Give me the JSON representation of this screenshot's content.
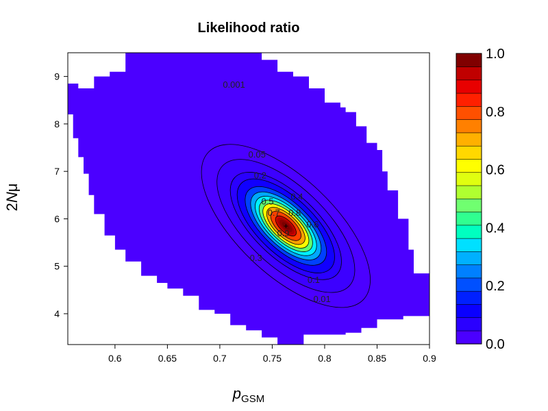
{
  "chart_data": {
    "type": "contour",
    "title": "Likelihood ratio",
    "xlabel": {
      "main": "p",
      "subscript": "GSM"
    },
    "ylabel": {
      "prefix": "2",
      "italic": "N",
      "suffix": "μ"
    },
    "xlim": [
      0.555,
      0.9
    ],
    "ylim": [
      3.35,
      9.5
    ],
    "xticks": [
      0.6,
      0.65,
      0.7,
      0.75,
      0.8,
      0.85,
      0.9
    ],
    "xtick_labels": [
      "0.6",
      "0.65",
      "0.7",
      "0.75",
      "0.8",
      "0.85",
      "0.9"
    ],
    "yticks": [
      4,
      5,
      6,
      7,
      8,
      9
    ],
    "ytick_labels": [
      "4",
      "5",
      "6",
      "7",
      "8",
      "9"
    ],
    "peak": {
      "x": 0.763,
      "y": 5.85,
      "value": 1.0
    },
    "contour_levels": [
      0.001,
      0.01,
      0.05,
      0.1,
      0.2,
      0.3,
      0.4,
      0.5,
      0.6,
      0.7,
      0.8,
      0.9
    ],
    "contour_labels": [
      {
        "text": "0.001",
        "x": 0.7135,
        "y": 8.82
      },
      {
        "text": "0.01",
        "x": 0.7975,
        "y": 4.3
      },
      {
        "text": "0.05",
        "x": 0.7355,
        "y": 7.35
      },
      {
        "text": "0.1",
        "x": 0.7895,
        "y": 4.71
      },
      {
        "text": "0.2",
        "x": 0.7385,
        "y": 6.91
      },
      {
        "text": "0.3",
        "x": 0.7345,
        "y": 5.17
      },
      {
        "text": "0.4",
        "x": 0.7735,
        "y": 6.46
      },
      {
        "text": "0.5",
        "x": 0.7455,
        "y": 6.36
      },
      {
        "text": "0.6",
        "x": 0.7885,
        "y": 5.88
      },
      {
        "text": "0.7",
        "x": 0.7515,
        "y": 6.12
      },
      {
        "text": "0.8",
        "x": 0.7715,
        "y": 6.12
      },
      {
        "text": "0.9",
        "x": 0.7605,
        "y": 5.69
      }
    ],
    "colorbar": {
      "min": 0.0,
      "max": 1.0,
      "ticks": [
        "0.0",
        "0.2",
        "0.4",
        "0.6",
        "0.8",
        "1.0"
      ],
      "colors": [
        "#4B00FF",
        "#2A00FF",
        "#0A00FF",
        "#0020FF",
        "#0050FF",
        "#0080FF",
        "#00B0FF",
        "#00E0FF",
        "#00FFC0",
        "#30FF90",
        "#70FF70",
        "#B0FF30",
        "#E0FF10",
        "#FFFF00",
        "#FFD800",
        "#FFB000",
        "#FF8000",
        "#FF5000",
        "#FF2000",
        "#E80000",
        "#C00000",
        "#800000"
      ]
    },
    "grid": false,
    "legend": "right colorbar"
  }
}
